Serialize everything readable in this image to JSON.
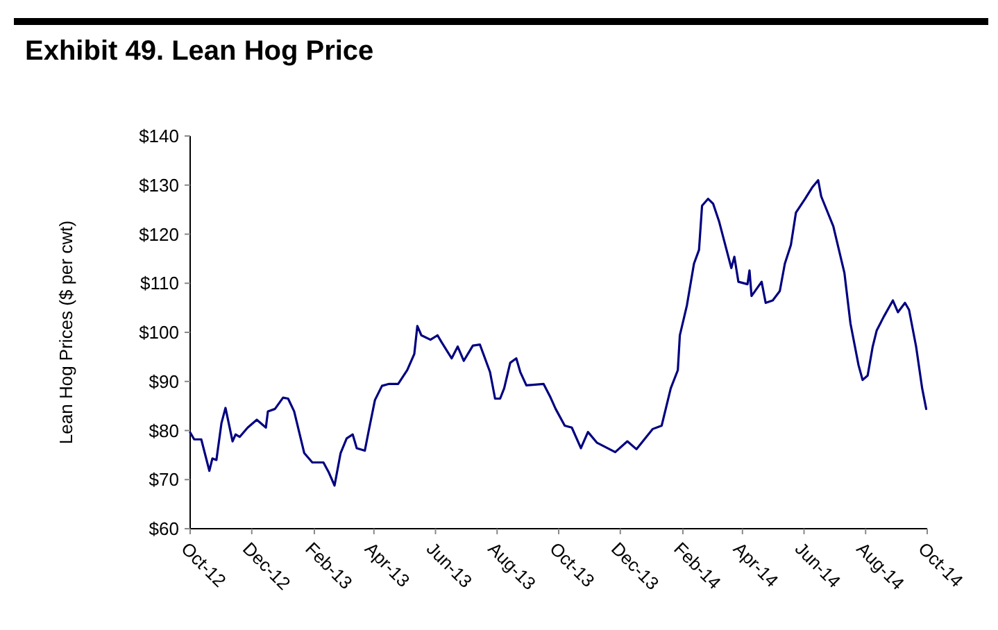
{
  "chart_data": {
    "type": "line",
    "title": "Exhibit 49. Lean Hog Price",
    "ylabel": "Lean Hog Prices ($ per cwt)",
    "x": [
      "2012-10-01",
      "2012-10-05",
      "2012-10-12",
      "2012-10-20",
      "2012-10-23",
      "2012-10-27",
      "2012-11-01",
      "2012-11-05",
      "2012-11-12",
      "2012-11-15",
      "2012-11-19",
      "2012-11-27",
      "2012-12-06",
      "2012-12-15",
      "2012-12-17",
      "2012-12-24",
      "2013-01-01",
      "2013-01-06",
      "2013-01-12",
      "2013-01-22",
      "2013-01-30",
      "2013-02-10",
      "2013-02-15",
      "2013-02-21",
      "2013-02-27",
      "2013-03-05",
      "2013-03-11",
      "2013-03-15",
      "2013-03-23",
      "2013-03-27",
      "2013-04-02",
      "2013-04-09",
      "2013-04-16",
      "2013-04-25",
      "2013-05-04",
      "2013-05-11",
      "2013-05-14",
      "2013-05-18",
      "2013-05-27",
      "2013-06-03",
      "2013-06-07",
      "2013-06-17",
      "2013-06-23",
      "2013-06-29",
      "2013-07-08",
      "2013-07-15",
      "2013-07-25",
      "2013-07-30",
      "2013-08-04",
      "2013-08-08",
      "2013-08-14",
      "2013-08-20",
      "2013-08-24",
      "2013-08-30",
      "2013-09-16",
      "2013-09-23",
      "2013-09-28",
      "2013-10-07",
      "2013-10-14",
      "2013-10-23",
      "2013-10-30",
      "2013-11-08",
      "2013-11-26",
      "2013-12-08",
      "2013-12-17",
      "2014-01-02",
      "2014-01-11",
      "2014-01-20",
      "2014-01-27",
      "2014-01-29",
      "2014-02-05",
      "2014-02-12",
      "2014-02-17",
      "2014-02-20",
      "2014-02-26",
      "2014-03-03",
      "2014-03-09",
      "2014-03-15",
      "2014-03-21",
      "2014-03-24",
      "2014-03-28",
      "2014-04-06",
      "2014-04-08",
      "2014-04-10",
      "2014-04-20",
      "2014-04-24",
      "2014-05-01",
      "2014-05-08",
      "2014-05-13",
      "2014-05-19",
      "2014-05-24",
      "2014-06-02",
      "2014-06-09",
      "2014-06-15",
      "2014-06-18",
      "2014-06-30",
      "2014-07-11",
      "2014-07-17",
      "2014-07-25",
      "2014-07-29",
      "2014-08-03",
      "2014-08-08",
      "2014-08-12",
      "2014-08-19",
      "2014-08-28",
      "2014-09-02",
      "2014-09-09",
      "2014-09-13",
      "2014-09-20",
      "2014-09-26",
      "2014-09-30"
    ],
    "series": [
      {
        "color": "#000080",
        "values": [
          79.6,
          78.2,
          78.2,
          71.8,
          74.3,
          74.0,
          81.5,
          84.6,
          77.8,
          79.2,
          78.7,
          80.6,
          82.2,
          80.6,
          83.9,
          84.4,
          86.7,
          86.5,
          83.9,
          75.4,
          73.5,
          73.5,
          71.6,
          68.8,
          75.4,
          78.4,
          79.2,
          76.4,
          75.9,
          80.1,
          86.2,
          89.1,
          89.5,
          89.5,
          92.3,
          95.6,
          101.3,
          99.4,
          98.5,
          99.4,
          98.0,
          94.7,
          97.1,
          94.2,
          97.3,
          97.5,
          91.9,
          86.5,
          86.5,
          88.6,
          93.8,
          94.7,
          91.9,
          89.2,
          89.5,
          86.7,
          84.4,
          81.0,
          80.6,
          76.4,
          79.7,
          77.5,
          75.6,
          77.8,
          76.2,
          80.3,
          81.0,
          88.6,
          92.3,
          99.4,
          105.5,
          114.0,
          116.8,
          125.8,
          127.2,
          126.2,
          122.5,
          117.8,
          113.1,
          115.4,
          110.3,
          109.8,
          112.6,
          107.4,
          110.3,
          106.0,
          106.5,
          108.4,
          114.0,
          117.8,
          124.4,
          127.2,
          129.5,
          131.0,
          127.7,
          121.6,
          112.1,
          101.8,
          93.3,
          90.3,
          91.2,
          97.1,
          100.4,
          103.2,
          106.5,
          104.1,
          106.0,
          104.6,
          97.1,
          88.6,
          84.4
        ]
      }
    ],
    "xlim": [
      "2012-10-01",
      "2014-10-01"
    ],
    "xticks": [
      {
        "value": "2012-10-01",
        "label": "Oct-12"
      },
      {
        "value": "2012-12-01",
        "label": "Dec-12"
      },
      {
        "value": "2013-02-01",
        "label": "Feb-13"
      },
      {
        "value": "2013-04-01",
        "label": "Apr-13"
      },
      {
        "value": "2013-06-01",
        "label": "Jun-13"
      },
      {
        "value": "2013-08-01",
        "label": "Aug-13"
      },
      {
        "value": "2013-10-01",
        "label": "Oct-13"
      },
      {
        "value": "2013-12-01",
        "label": "Dec-13"
      },
      {
        "value": "2014-02-01",
        "label": "Feb-14"
      },
      {
        "value": "2014-04-01",
        "label": "Apr-14"
      },
      {
        "value": "2014-06-01",
        "label": "Jun-14"
      },
      {
        "value": "2014-08-01",
        "label": "Aug-14"
      },
      {
        "value": "2014-10-01",
        "label": "Oct-14"
      }
    ],
    "ylim": [
      60,
      140
    ],
    "yticks": [
      {
        "value": 60,
        "label": "$60"
      },
      {
        "value": 70,
        "label": "$70"
      },
      {
        "value": 80,
        "label": "$80"
      },
      {
        "value": 90,
        "label": "$90"
      },
      {
        "value": 100,
        "label": "$100"
      },
      {
        "value": 110,
        "label": "$110"
      },
      {
        "value": 120,
        "label": "$120"
      },
      {
        "value": 130,
        "label": "$130"
      },
      {
        "value": 140,
        "label": "$140"
      }
    ],
    "grid": false,
    "marker": "none",
    "line_style": "solid"
  }
}
